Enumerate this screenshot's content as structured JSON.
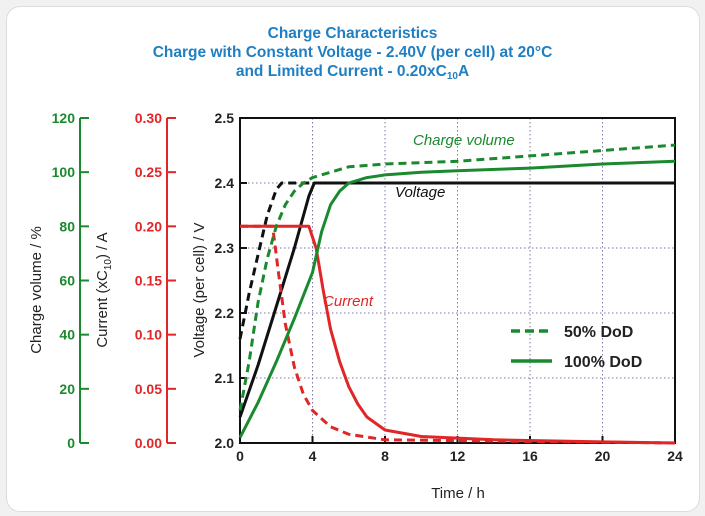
{
  "title": {
    "line1": "Charge Characteristics",
    "line2": "Charge with Constant Voltage - 2.40V (per cell) at 20°C",
    "line3_pre": "and Limited Current - 0.20xC",
    "line3_sub": "10",
    "line3_post": "A"
  },
  "colors": {
    "title": "#1f7fc2",
    "green": "#1a8a2e",
    "red": "#e02626",
    "black": "#111111",
    "grid": "#7a7aa0"
  },
  "labels": {
    "charge_axis": "Charge volume / %",
    "current_axis_pre": "Current (xC",
    "current_axis_sub": "10",
    "current_axis_post": ") / A",
    "voltage_axis": "Voltage (per cell) / V",
    "x_axis": "Time / h",
    "annot_charge": "Charge volume",
    "annot_voltage": "Voltage",
    "annot_current": "Current",
    "legend_50": "50% DoD",
    "legend_100": "100% DoD"
  },
  "chart_data": {
    "type": "line",
    "title": "Charge Characteristics",
    "xlabel": "Time / h",
    "xlim": [
      0,
      24
    ],
    "xticks": [
      "0",
      "4",
      "8",
      "12",
      "16",
      "20",
      "24"
    ],
    "grid": true,
    "legend": "center-right",
    "axes": {
      "voltage": {
        "label": "Voltage (per cell) / V",
        "lim": [
          2.0,
          2.5
        ],
        "ticks": [
          "2.0",
          "2.1",
          "2.2",
          "2.3",
          "2.4",
          "2.5"
        ]
      },
      "current": {
        "label": "Current (xC10) / A",
        "lim": [
          0.0,
          0.3
        ],
        "ticks": [
          "0.00",
          "0.05",
          "0.10",
          "0.15",
          "0.20",
          "0.25",
          "0.30"
        ]
      },
      "charge": {
        "label": "Charge volume / %",
        "lim": [
          0,
          120
        ],
        "ticks": [
          "0",
          "20",
          "40",
          "60",
          "80",
          "100",
          "120"
        ]
      }
    },
    "series": [
      {
        "name": "Voltage",
        "dod": "50% DoD",
        "axis": "voltage",
        "style": "dashed",
        "color": "#111111",
        "x": [
          0,
          0.5,
          1,
          1.5,
          2,
          2.3,
          24
        ],
        "y": [
          2.16,
          2.23,
          2.29,
          2.35,
          2.39,
          2.4,
          2.4
        ]
      },
      {
        "name": "Voltage",
        "dod": "100% DoD",
        "axis": "voltage",
        "style": "solid",
        "color": "#111111",
        "x": [
          0,
          1,
          2,
          3,
          3.8,
          4.1,
          24
        ],
        "y": [
          2.04,
          2.12,
          2.21,
          2.3,
          2.38,
          2.4,
          2.4
        ]
      },
      {
        "name": "Current",
        "dod": "50% DoD",
        "axis": "current",
        "style": "dashed",
        "color": "#e02626",
        "x": [
          0,
          1.8,
          2.1,
          2.5,
          3,
          3.5,
          4,
          5,
          6,
          8,
          24
        ],
        "y": [
          0.2,
          0.2,
          0.16,
          0.11,
          0.07,
          0.045,
          0.03,
          0.015,
          0.008,
          0.003,
          0.0
        ]
      },
      {
        "name": "Current",
        "dod": "100% DoD",
        "axis": "current",
        "style": "solid",
        "color": "#e02626",
        "x": [
          0,
          3.8,
          4.2,
          4.6,
          5,
          5.5,
          6,
          6.5,
          7,
          8,
          10,
          14,
          20,
          24
        ],
        "y": [
          0.2,
          0.2,
          0.18,
          0.14,
          0.105,
          0.075,
          0.052,
          0.036,
          0.024,
          0.012,
          0.006,
          0.003,
          0.001,
          0.0
        ]
      },
      {
        "name": "Charge volume",
        "dod": "50% DoD",
        "axis": "charge",
        "style": "dashed",
        "color": "#1a8a2e",
        "x": [
          0,
          0.5,
          1,
          1.5,
          2,
          2.5,
          3,
          3.5,
          4,
          5,
          6,
          8,
          12,
          16,
          20,
          24
        ],
        "y": [
          12,
          30,
          52,
          68,
          80,
          88,
          93,
          96,
          98,
          100,
          102,
          103,
          104,
          106,
          108,
          110
        ]
      },
      {
        "name": "Charge volume",
        "dod": "100% DoD",
        "axis": "charge",
        "style": "solid",
        "color": "#1a8a2e",
        "x": [
          0,
          1,
          2,
          3,
          4,
          4.5,
          5,
          5.5,
          6,
          7,
          8,
          10,
          12,
          16,
          20,
          24
        ],
        "y": [
          2,
          15,
          30,
          46,
          63,
          78,
          88,
          93,
          96,
          98,
          99,
          100,
          100.5,
          101.5,
          103,
          104
        ]
      }
    ]
  }
}
